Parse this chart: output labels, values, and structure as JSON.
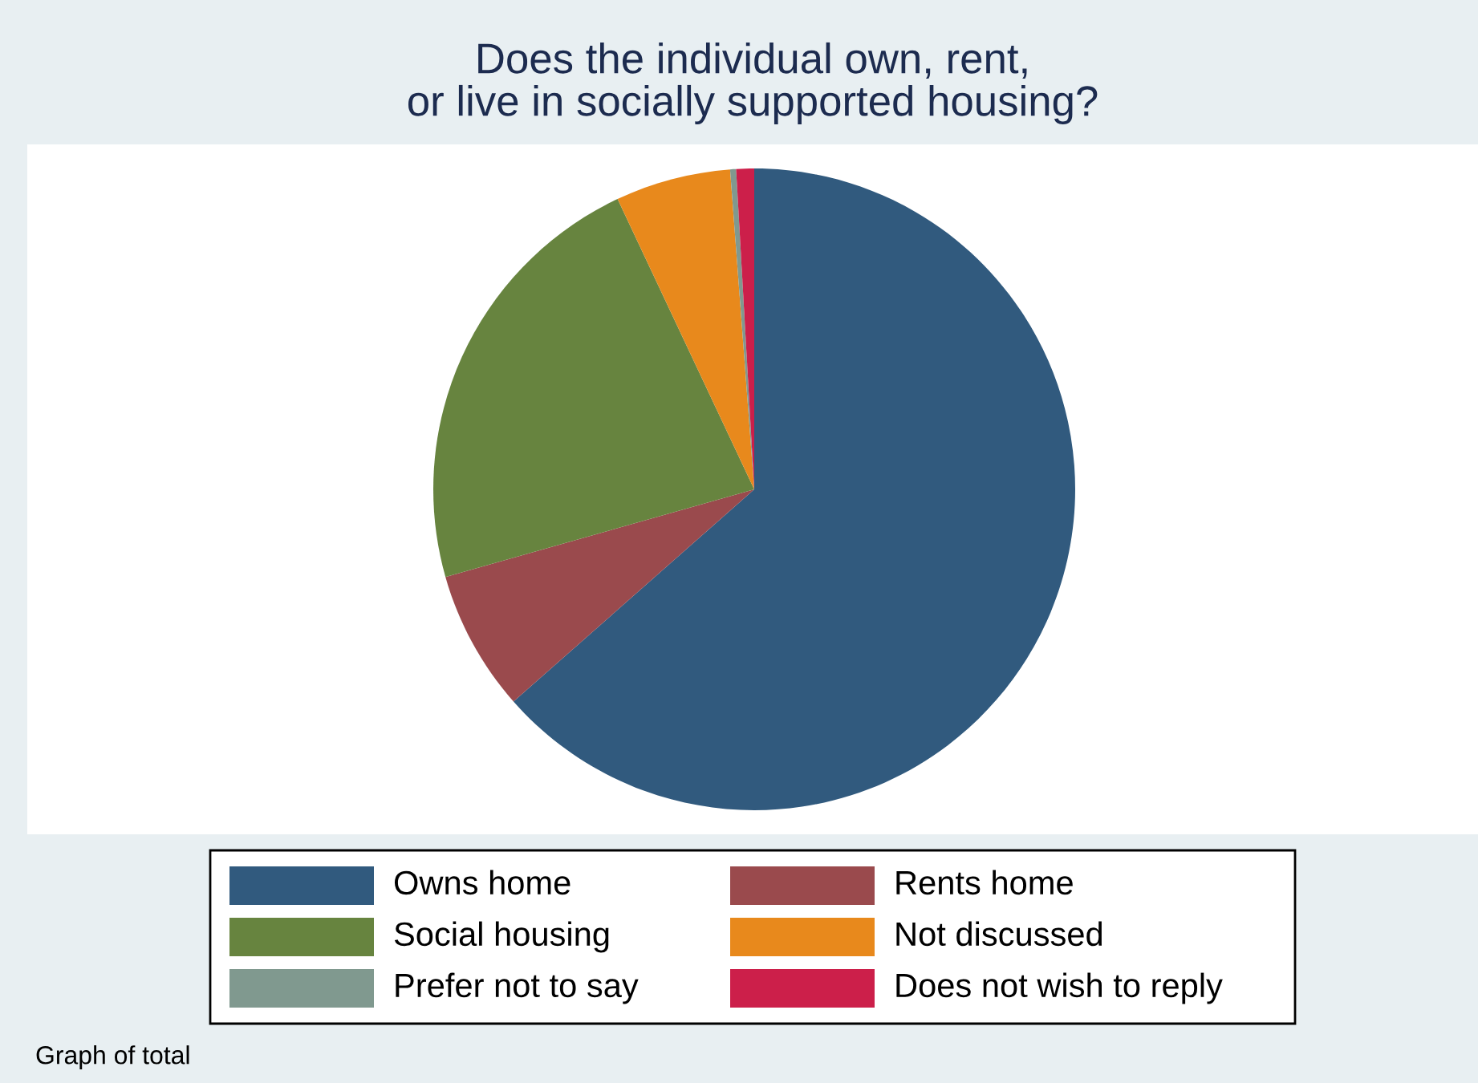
{
  "chart_data": {
    "type": "pie",
    "title": "Does the individual own, rent,\nor live in socially supported housing?",
    "categories": [
      "Owns home",
      "Rents home",
      "Social housing",
      "Not discussed",
      "Prefer not to say",
      "Does not wish to reply"
    ],
    "values": [
      63.5,
      7.1,
      22.4,
      5.8,
      0.3,
      0.9
    ],
    "colors": [
      "#315a7e",
      "#9a4a4d",
      "#67843f",
      "#e8891c",
      "#80998f",
      "#cc1f4a"
    ],
    "legend": "bottom",
    "annotations": [
      "Graph of total"
    ]
  }
}
